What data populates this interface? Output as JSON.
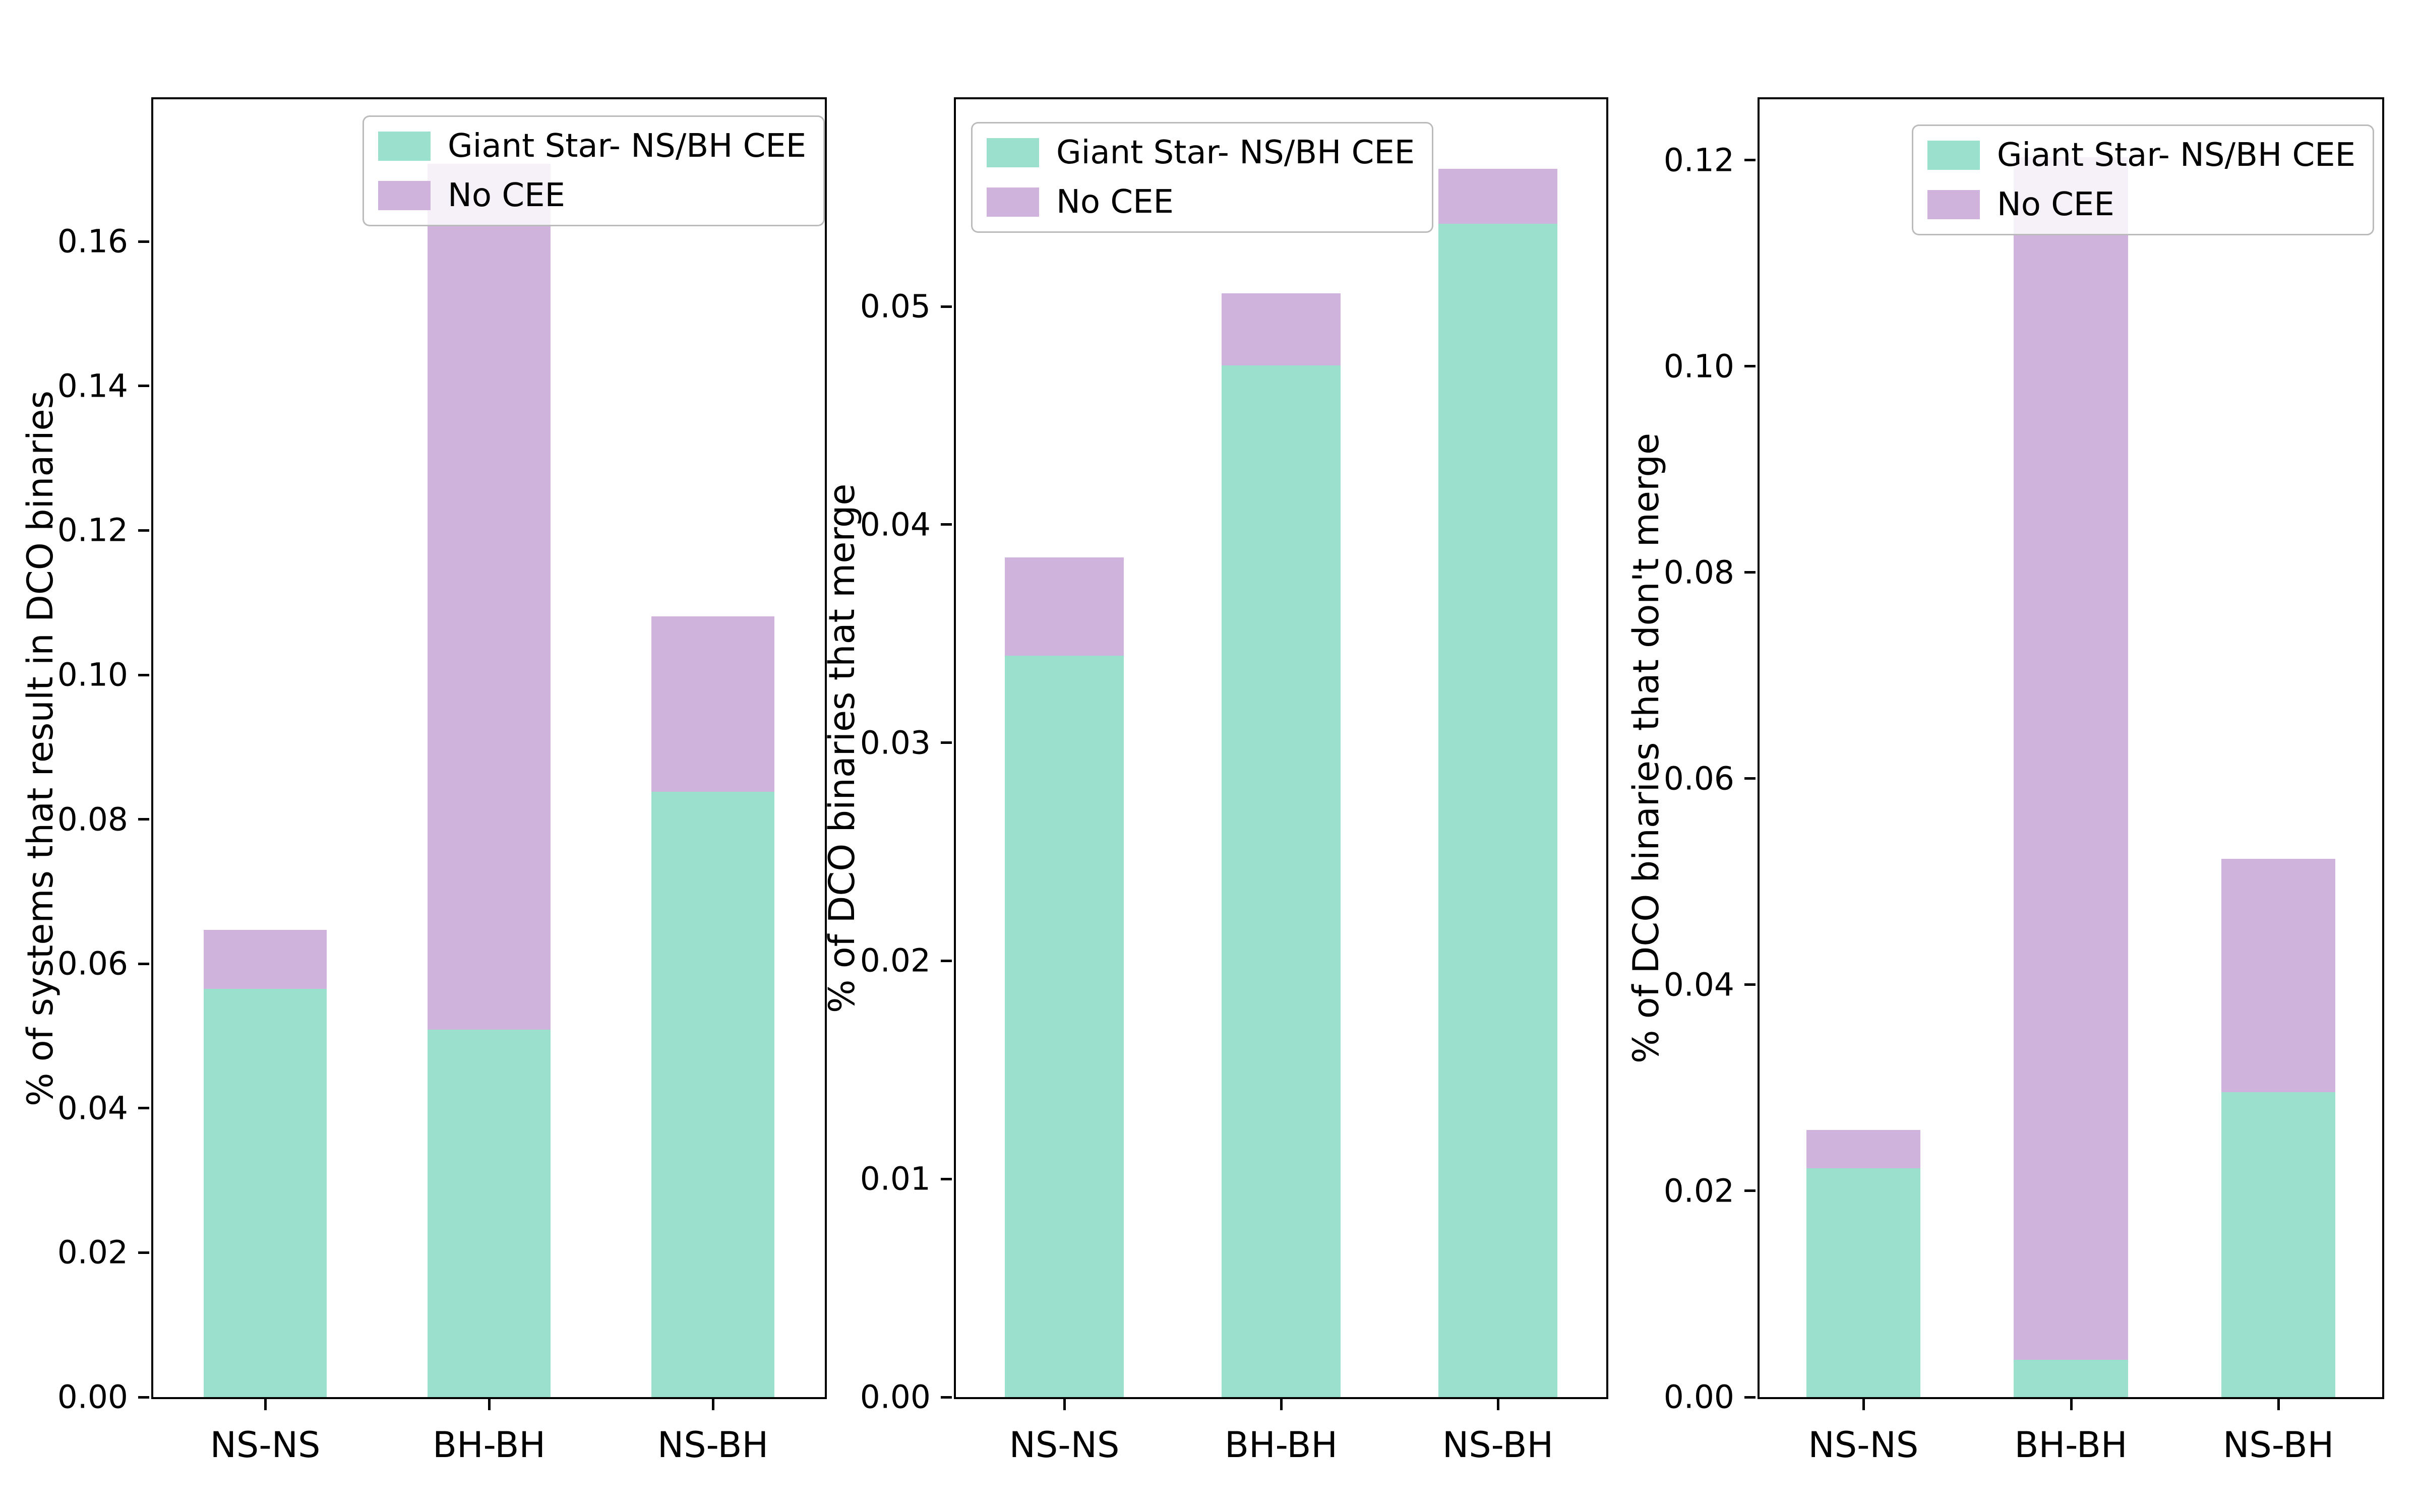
{
  "figure": {
    "background": "#ffffff",
    "text_color": "#000000"
  },
  "legend": {
    "items": [
      {
        "label": "Giant Star- NS/BH CEE",
        "color": "#9ae0cd"
      },
      {
        "label": "No CEE",
        "color": "#cfb3dd"
      }
    ]
  },
  "chart_data": [
    {
      "type": "bar",
      "stacked": true,
      "title": "",
      "xlabel": "",
      "ylabel": "% of systems that result in DCO binaries",
      "categories": [
        "NS-NS",
        "BH-BH",
        "NS-BH"
      ],
      "series": [
        {
          "name": "Giant Star- NS/BH CEE",
          "color": "#9ae0cd",
          "values": [
            0.0565,
            0.0509,
            0.0838
          ]
        },
        {
          "name": "No CEE",
          "color": "#cfb3dd",
          "values": [
            0.0082,
            0.1199,
            0.0243
          ]
        }
      ],
      "totals": [
        0.0647,
        0.1708,
        0.1081
      ],
      "ylim": [
        0,
        0.1797
      ],
      "yticks": [
        0.0,
        0.02,
        0.04,
        0.06,
        0.08,
        0.1,
        0.12,
        0.14,
        0.16
      ],
      "grid": false,
      "legend_position": "upper-center-right"
    },
    {
      "type": "bar",
      "stacked": true,
      "title": "",
      "xlabel": "",
      "ylabel": "% of DCO binaries that merge",
      "categories": [
        "NS-NS",
        "BH-BH",
        "NS-BH"
      ],
      "series": [
        {
          "name": "Giant Star- NS/BH CEE",
          "color": "#9ae0cd",
          "values": [
            0.034,
            0.0473,
            0.0538
          ]
        },
        {
          "name": "No CEE",
          "color": "#cfb3dd",
          "values": [
            0.0045,
            0.0033,
            0.0025
          ]
        }
      ],
      "totals": [
        0.0385,
        0.0506,
        0.0563
      ],
      "ylim": [
        0,
        0.0595
      ],
      "yticks": [
        0.0,
        0.01,
        0.02,
        0.03,
        0.04,
        0.05
      ],
      "grid": false,
      "legend_position": "upper-left"
    },
    {
      "type": "bar",
      "stacked": true,
      "title": "",
      "xlabel": "",
      "ylabel": "% of DCO binaries that don't merge",
      "categories": [
        "NS-NS",
        "BH-BH",
        "NS-BH"
      ],
      "series": [
        {
          "name": "Giant Star- NS/BH CEE",
          "color": "#9ae0cd",
          "values": [
            0.0222,
            0.0036,
            0.0296
          ]
        },
        {
          "name": "No CEE",
          "color": "#cfb3dd",
          "values": [
            0.0037,
            0.1167,
            0.0226
          ]
        }
      ],
      "totals": [
        0.0259,
        0.1203,
        0.0522
      ],
      "ylim": [
        0,
        0.1259
      ],
      "yticks": [
        0.0,
        0.02,
        0.04,
        0.06,
        0.08,
        0.1,
        0.12
      ],
      "grid": false,
      "legend_position": "upper-right"
    }
  ]
}
